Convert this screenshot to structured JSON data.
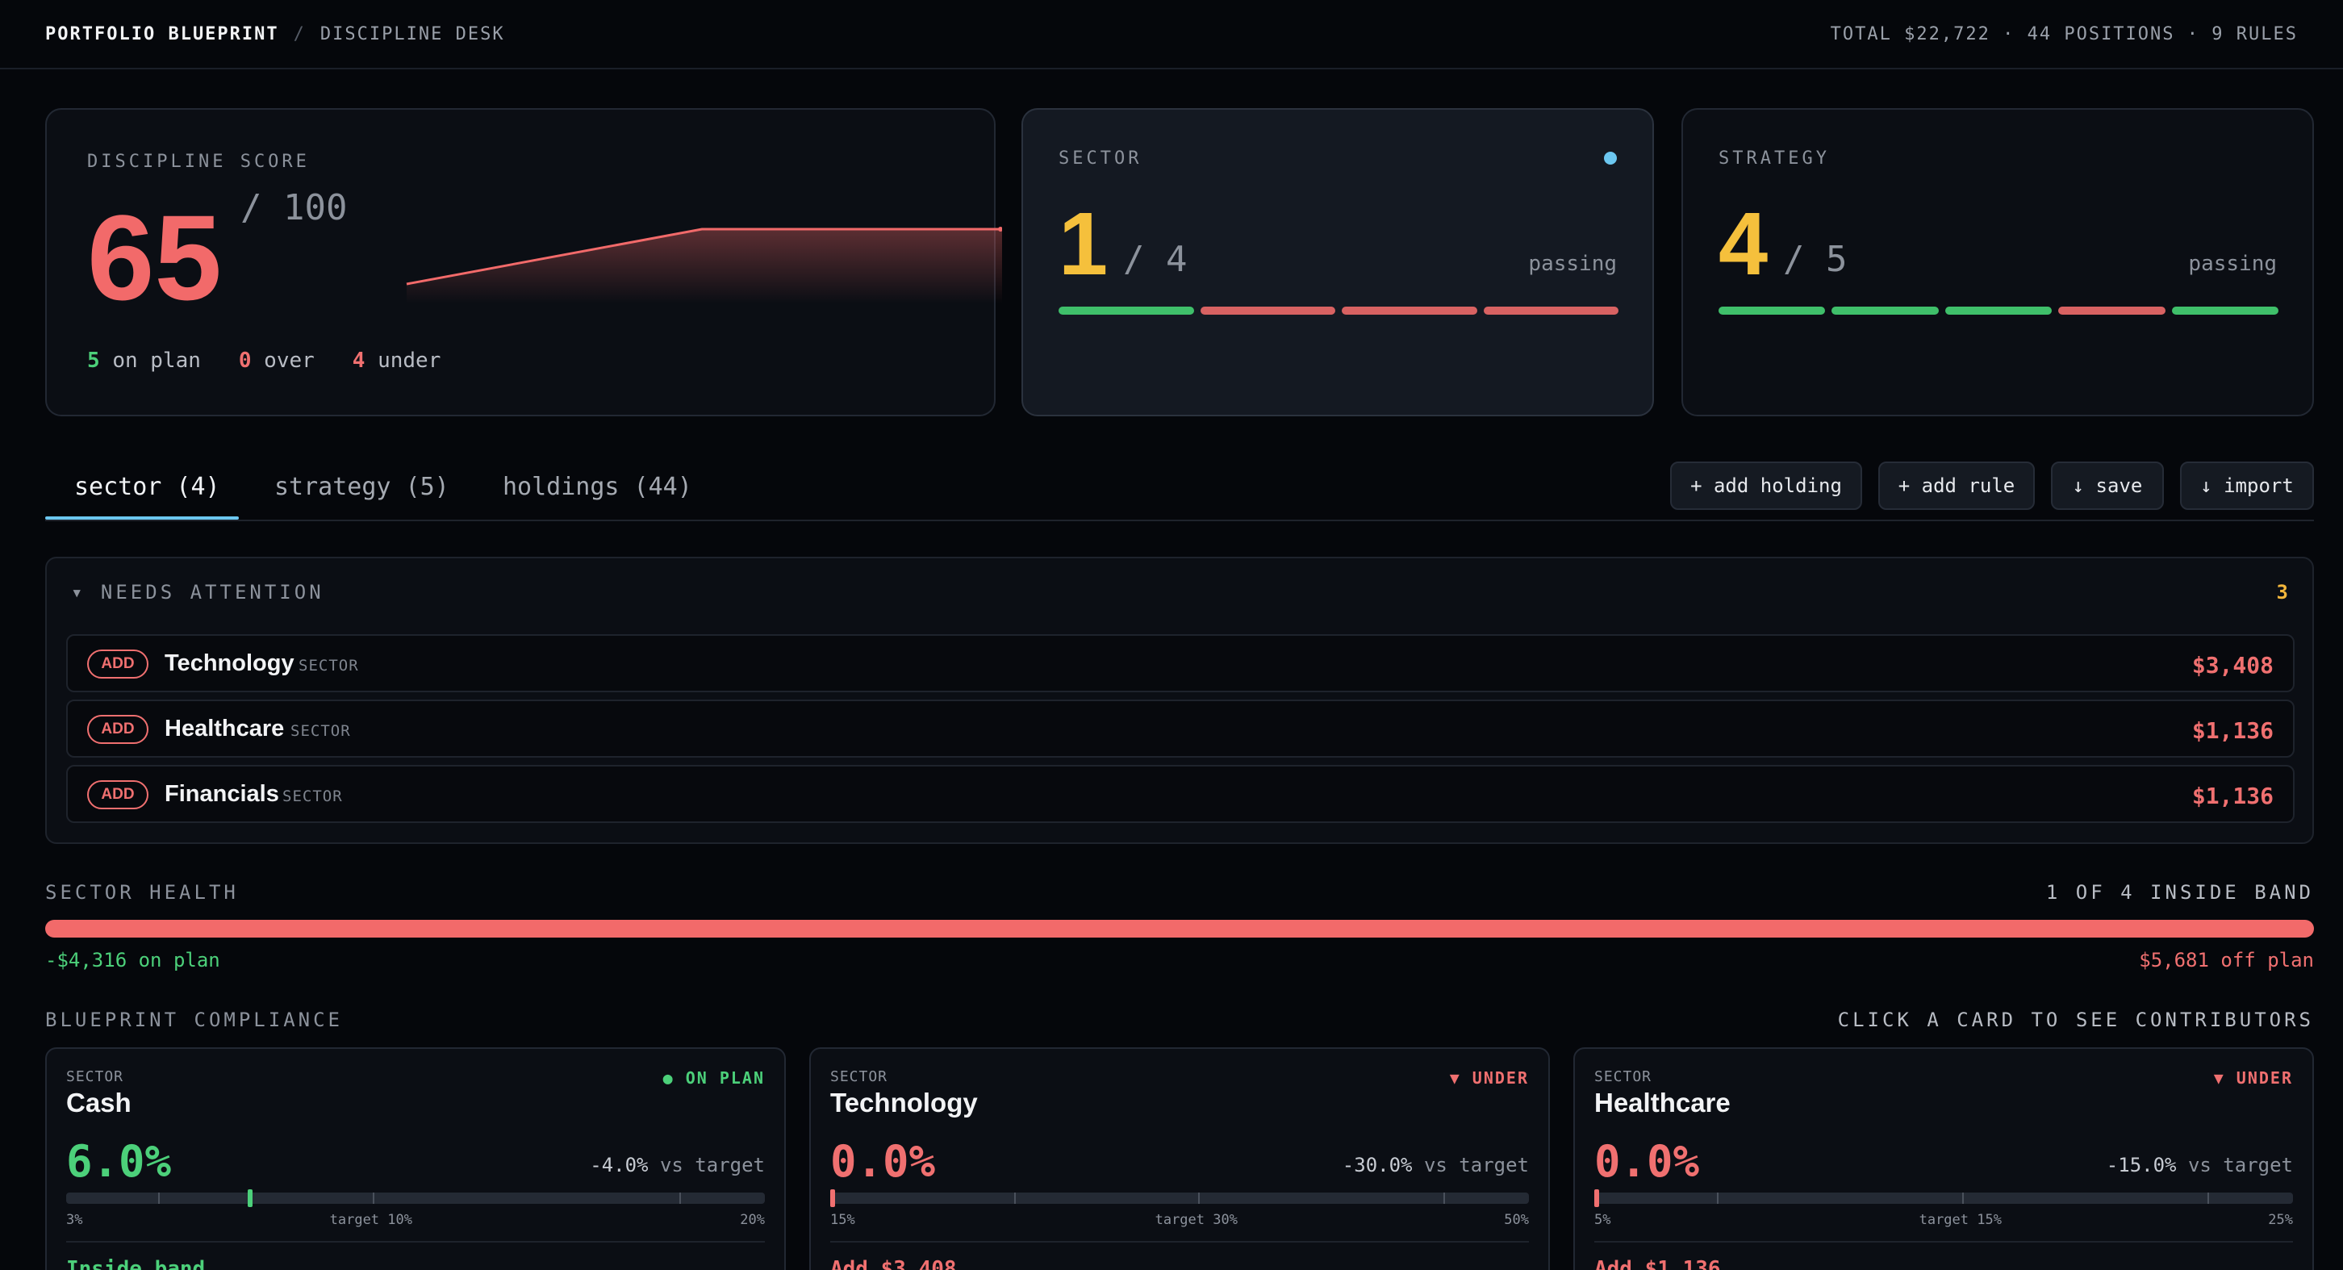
{
  "topbar": {
    "brand": "PORTFOLIO BLUEPRINT",
    "separator": "/",
    "section": "DISCIPLINE DESK",
    "summary": "TOTAL $22,722 · 44 POSITIONS · 9 RULES"
  },
  "score_card": {
    "label": "DISCIPLINE SCORE",
    "score": "65",
    "out_of": "/ 100",
    "on_plan_count": "5",
    "on_plan_label": "on plan",
    "over_count": "0",
    "over_label": "over",
    "under_count": "4",
    "under_label": "under"
  },
  "sector_card": {
    "label": "SECTOR",
    "value": "1",
    "out_of": "/ 4",
    "status": "passing",
    "segments": [
      "pass",
      "fail",
      "fail",
      "fail"
    ]
  },
  "strategy_card": {
    "label": "STRATEGY",
    "value": "4",
    "out_of": "/ 5",
    "status": "passing",
    "segments": [
      "pass",
      "pass",
      "pass",
      "fail",
      "pass"
    ]
  },
  "tabs": [
    {
      "label": "sector (4)"
    },
    {
      "label": "strategy (5)"
    },
    {
      "label": "holdings (44)"
    }
  ],
  "actions": {
    "add_holding": "+ add holding",
    "add_rule": "+ add rule",
    "save": "↓ save",
    "import": "↓ import"
  },
  "attention": {
    "title": "▾ NEEDS ATTENTION",
    "count": "3",
    "rows": [
      {
        "badge": "ADD",
        "name": "Technology",
        "tag": "SECTOR",
        "amount": "$3,408"
      },
      {
        "badge": "ADD",
        "name": "Healthcare",
        "tag": "SECTOR",
        "amount": "$1,136"
      },
      {
        "badge": "ADD",
        "name": "Financials",
        "tag": "SECTOR",
        "amount": "$1,136"
      }
    ]
  },
  "sector_health": {
    "label": "SECTOR HEALTH",
    "summary": "1 OF 4 INSIDE BAND",
    "on_plan_note": "-$4,316 on plan",
    "off_plan_note": "$5,681 off plan"
  },
  "compliance": {
    "label": "BLUEPRINT COMPLIANCE",
    "hint": "CLICK A CARD TO SEE CONTRIBUTORS",
    "cards": [
      {
        "kind": "SECTOR",
        "name": "Cash",
        "status": "● ON PLAN",
        "pct": "6.0%",
        "delta": "-4.0%",
        "vs": "vs target",
        "min": "3%",
        "target": "target 10%",
        "max": "20%",
        "note": "Inside band",
        "tone": "good",
        "min_val": 3,
        "target_val": 10,
        "max_val": 20,
        "actual_val": 6
      },
      {
        "kind": "SECTOR",
        "name": "Technology",
        "status": "▼ UNDER",
        "pct": "0.0%",
        "delta": "-30.0%",
        "vs": "vs target",
        "min": "15%",
        "target": "target 30%",
        "max": "50%",
        "note": "Add $3,408",
        "tone": "bad",
        "min_val": 15,
        "target_val": 30,
        "max_val": 50,
        "actual_val": 0
      },
      {
        "kind": "SECTOR",
        "name": "Healthcare",
        "status": "▼ UNDER",
        "pct": "0.0%",
        "delta": "-15.0%",
        "vs": "vs target",
        "min": "5%",
        "target": "target 15%",
        "max": "25%",
        "note": "Add $1,136",
        "tone": "bad",
        "min_val": 5,
        "target_val": 15,
        "max_val": 25,
        "actual_val": 0
      }
    ]
  },
  "colors": {
    "good": "#4cd07a",
    "bad": "#f07070",
    "accent": "#6cc7f0",
    "warn": "#f3b63c"
  }
}
